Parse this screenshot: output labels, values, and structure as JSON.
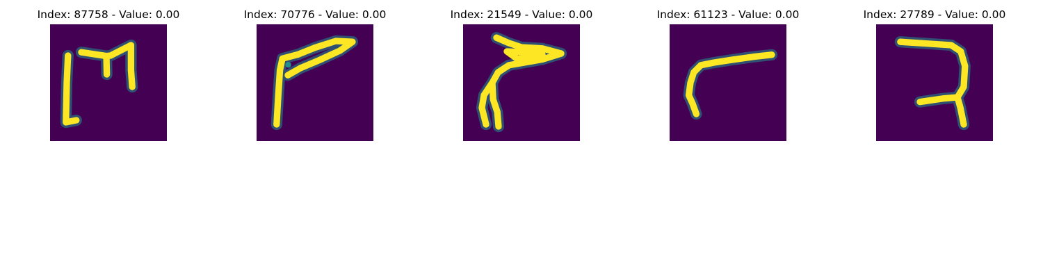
{
  "figure": {
    "panels": [
      {
        "title": "Index: 87758 - Value: 0.00",
        "glyph": "bracket-m-stroke"
      },
      {
        "title": "Index: 70776 - Value: 0.00",
        "glyph": "bent-stroke"
      },
      {
        "title": "Index: 21549 - Value: 0.00",
        "glyph": "hooked-stroke"
      },
      {
        "title": "Index: 61123 - Value: 0.00",
        "glyph": "curved-angle-stroke"
      },
      {
        "title": "Index: 27789 - Value: 0.00",
        "glyph": "seven-like-stroke"
      }
    ],
    "colors": {
      "background": "#440154",
      "edge": "#21918c",
      "mid": "#5ec962",
      "peak": "#fde725"
    }
  }
}
